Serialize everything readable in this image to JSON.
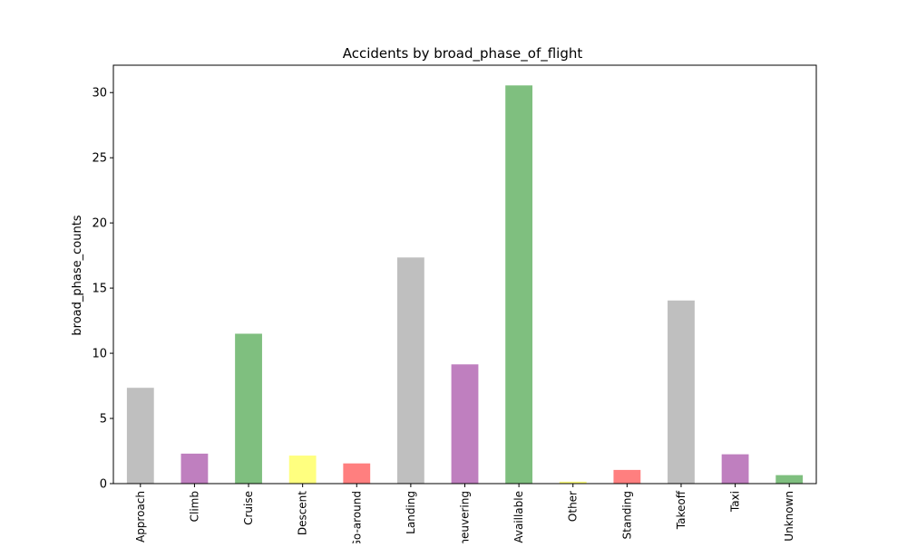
{
  "chart_data": {
    "type": "bar",
    "title": "Accidents by broad_phase_of_flight",
    "xlabel": "",
    "ylabel": "broad_phase_counts",
    "categories": [
      "Approach",
      "Climb",
      "Cruise",
      "Descent",
      "Go-around",
      "Landing",
      "Maneuvering",
      "Not Availlable",
      "Other",
      "Standing",
      "Takeoff",
      "Taxi",
      "Unknown"
    ],
    "values": [
      7.35,
      2.3,
      11.5,
      2.15,
      1.55,
      17.35,
      9.15,
      30.55,
      0.15,
      1.05,
      14.05,
      2.25,
      0.65
    ],
    "colors": [
      "#bfbfbf",
      "#bf7fbf",
      "#7fbf7f",
      "#ffff7f",
      "#ff7f7f",
      "#bfbfbf",
      "#bf7fbf",
      "#7fbf7f",
      "#ffff7f",
      "#ff7f7f",
      "#bfbfbf",
      "#bf7fbf",
      "#7fbf7f"
    ],
    "yticks": [
      0,
      5,
      10,
      15,
      20,
      25,
      30
    ],
    "ylim": [
      0,
      32.1
    ],
    "grid": false,
    "legend": "none"
  }
}
